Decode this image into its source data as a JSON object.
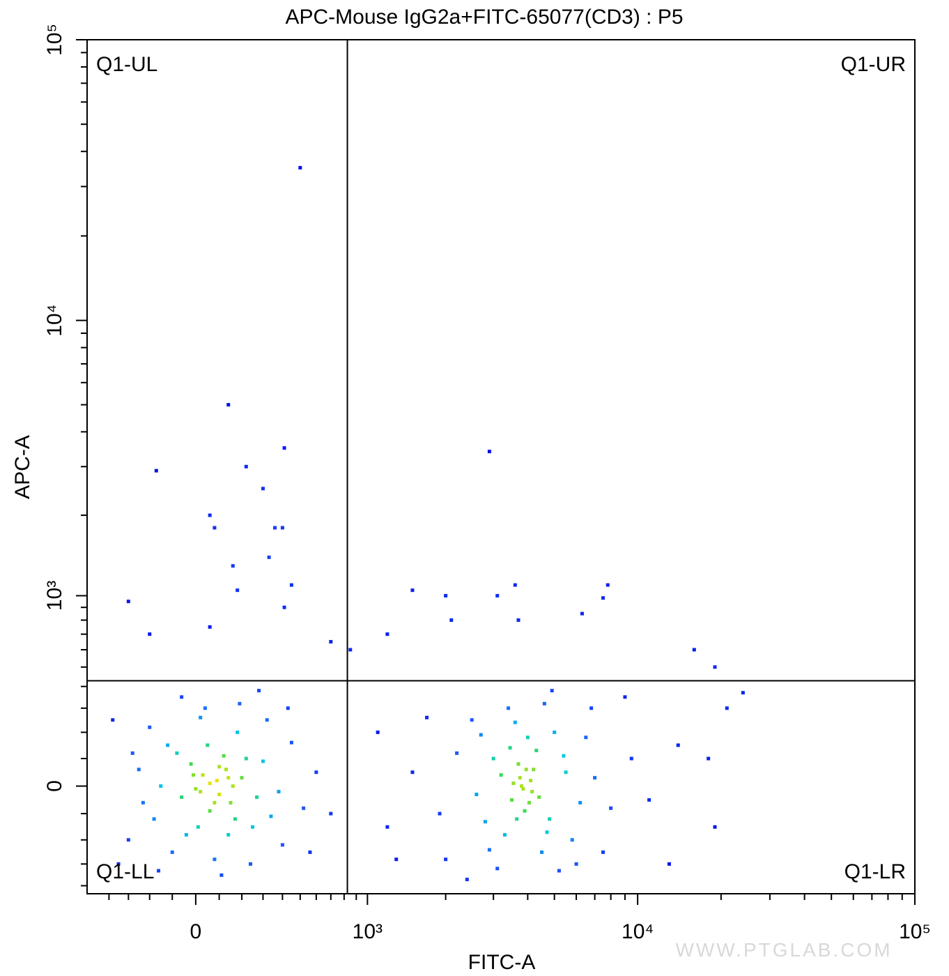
{
  "chart_data": {
    "type": "scatter",
    "title": "APC-Mouse IgG2a+FITC-65077(CD3) : P5",
    "x_label": "FITC-A",
    "y_label": "APC-A",
    "xscale": "biexponential",
    "yscale": "biexponential",
    "xlim": [
      -525,
      100000
    ],
    "ylim": [
      -440,
      100000
    ],
    "xticks": [
      0,
      {
        "value": 1000,
        "label": "10³"
      },
      {
        "value": 10000,
        "label": "10⁴"
      },
      {
        "value": 100000,
        "label": "10⁵"
      }
    ],
    "yticks": [
      0,
      {
        "value": 1000,
        "label": "10³"
      },
      {
        "value": 10000,
        "label": "10⁴"
      },
      {
        "value": 100000,
        "label": "10⁵"
      }
    ],
    "xminorticks": [
      -400,
      -300,
      -200,
      -100,
      100,
      200,
      300,
      400,
      500,
      600,
      700,
      800,
      900,
      2000,
      3000,
      4000,
      5000,
      6000,
      7000,
      8000,
      9000,
      20000,
      30000,
      40000,
      50000,
      60000,
      70000,
      80000,
      90000
    ],
    "yminorticks": [
      -400,
      -300,
      -200,
      -100,
      100,
      200,
      300,
      400,
      500,
      600,
      700,
      800,
      900,
      2000,
      3000,
      4000,
      5000,
      6000,
      7000,
      8000,
      9000,
      20000,
      30000,
      40000,
      50000,
      60000,
      70000,
      80000,
      90000
    ],
    "gates": {
      "x": 826,
      "y": 428
    },
    "quadrants": [
      "Q1-UL",
      "Q1-UR",
      "Q1-LL",
      "Q1-LR"
    ],
    "watermark": "WWW.PTGLAB.COM",
    "points": [
      [
        -250,
        60
      ],
      [
        -180,
        -120
      ],
      [
        -120,
        150
      ],
      [
        -60,
        -40
      ],
      [
        -20,
        80
      ],
      [
        0,
        -10
      ],
      [
        30,
        40
      ],
      [
        60,
        -90
      ],
      [
        90,
        20
      ],
      [
        120,
        110
      ],
      [
        150,
        -60
      ],
      [
        200,
        30
      ],
      [
        250,
        -150
      ],
      [
        300,
        90
      ],
      [
        380,
        -20
      ],
      [
        450,
        160
      ],
      [
        520,
        -80
      ],
      [
        -300,
        -200
      ],
      [
        -200,
        220
      ],
      [
        -100,
        -250
      ],
      [
        20,
        260
      ],
      [
        80,
        -280
      ],
      [
        140,
        -180
      ],
      [
        180,
        200
      ],
      [
        240,
        -300
      ],
      [
        320,
        250
      ],
      [
        400,
        -220
      ],
      [
        -150,
        0
      ],
      [
        -80,
        120
      ],
      [
        10,
        -150
      ],
      [
        50,
        150
      ],
      [
        100,
        -30
      ],
      [
        130,
        60
      ],
      [
        170,
        -120
      ],
      [
        220,
        100
      ],
      [
        270,
        -40
      ],
      [
        340,
        -110
      ],
      [
        -40,
        -180
      ],
      [
        -230,
        -60
      ],
      [
        40,
        300
      ],
      [
        110,
        -350
      ],
      [
        190,
        320
      ],
      [
        60,
        10
      ],
      [
        80,
        -60
      ],
      [
        20,
        -20
      ],
      [
        140,
        30
      ],
      [
        -10,
        40
      ],
      [
        100,
        70
      ],
      [
        160,
        0
      ],
      [
        -280,
        120
      ],
      [
        600,
        50
      ],
      [
        700,
        -100
      ],
      [
        -350,
        -300
      ],
      [
        -380,
        250
      ],
      [
        280,
        380
      ],
      [
        -60,
        350
      ],
      [
        430,
        300
      ],
      [
        560,
        -250
      ],
      [
        -160,
        -330
      ],
      [
        3800,
        0
      ],
      [
        3500,
        -50
      ],
      [
        4200,
        60
      ],
      [
        3000,
        100
      ],
      [
        4800,
        -120
      ],
      [
        2600,
        -30
      ],
      [
        5500,
        50
      ],
      [
        3300,
        -180
      ],
      [
        4000,
        180
      ],
      [
        2200,
        120
      ],
      [
        6200,
        -60
      ],
      [
        3600,
        240
      ],
      [
        4500,
        -250
      ],
      [
        2900,
        -240
      ],
      [
        5000,
        200
      ],
      [
        1900,
        -100
      ],
      [
        7000,
        30
      ],
      [
        3900,
        -90
      ],
      [
        4100,
        20
      ],
      [
        3700,
        80
      ],
      [
        3200,
        40
      ],
      [
        4400,
        -40
      ],
      [
        2500,
        250
      ],
      [
        5800,
        -200
      ],
      [
        3400,
        300
      ],
      [
        4600,
        320
      ],
      [
        2000,
        -280
      ],
      [
        6500,
        180
      ],
      [
        1500,
        50
      ],
      [
        8000,
        -80
      ],
      [
        1200,
        -150
      ],
      [
        9500,
        100
      ],
      [
        3850,
        -10
      ],
      [
        3750,
        30
      ],
      [
        4050,
        -60
      ],
      [
        3650,
        -120
      ],
      [
        4300,
        130
      ],
      [
        2700,
        190
      ],
      [
        5200,
        -330
      ],
      [
        3100,
        -320
      ],
      [
        4900,
        380
      ],
      [
        2400,
        -370
      ],
      [
        1700,
        260
      ],
      [
        6800,
        300
      ],
      [
        1100,
        200
      ],
      [
        11000,
        -50
      ],
      [
        14000,
        150
      ],
      [
        3950,
        60
      ],
      [
        4150,
        -20
      ],
      [
        3550,
        10
      ],
      [
        3450,
        140
      ],
      [
        4700,
        -170
      ],
      [
        2800,
        -130
      ],
      [
        5400,
        110
      ],
      [
        6000,
        -300
      ],
      [
        7500,
        -250
      ],
      [
        1300,
        -280
      ],
      [
        13000,
        -300
      ],
      [
        9000,
        350
      ],
      [
        18000,
        100
      ],
      [
        500,
        35000
      ],
      [
        140,
        5000
      ],
      [
        410,
        3500
      ],
      [
        -170,
        2900
      ],
      [
        220,
        3000
      ],
      [
        300,
        2500
      ],
      [
        60,
        2000
      ],
      [
        80,
        1800
      ],
      [
        360,
        1800
      ],
      [
        160,
        1300
      ],
      [
        330,
        1400
      ],
      [
        400,
        1800
      ],
      [
        180,
        1050
      ],
      [
        450,
        1100
      ],
      [
        -300,
        950
      ],
      [
        410,
        900
      ],
      [
        2900,
        3400
      ],
      [
        1500,
        1050
      ],
      [
        2000,
        1000
      ],
      [
        3100,
        1000
      ],
      [
        3600,
        1100
      ],
      [
        7800,
        1100
      ],
      [
        7500,
        980
      ],
      [
        2100,
        800
      ],
      [
        3700,
        800
      ],
      [
        6300,
        850
      ],
      [
        -200,
        700
      ],
      [
        850,
        600
      ],
      [
        1200,
        700
      ],
      [
        16000,
        600
      ],
      [
        19000,
        500
      ],
      [
        24000,
        370
      ],
      [
        21000,
        300
      ],
      [
        19000,
        -150
      ],
      [
        60,
        750
      ],
      [
        700,
        650
      ]
    ]
  }
}
